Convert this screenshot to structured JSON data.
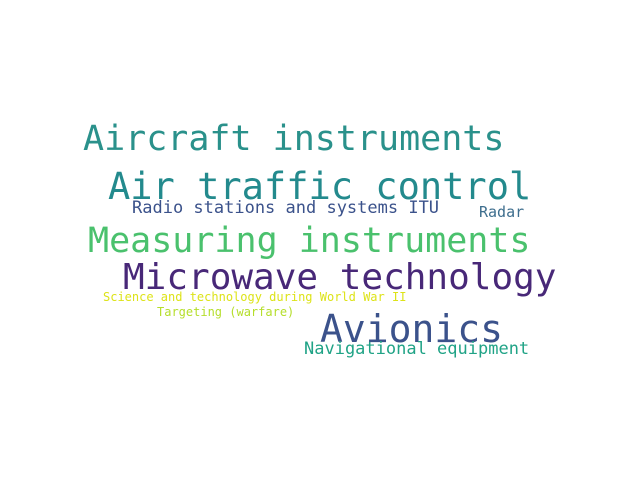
{
  "words": [
    {
      "text": "Aircraft instruments",
      "color": "#2a918b"
    },
    {
      "text": "Air traffic control",
      "color": "#238a8d"
    },
    {
      "text": "Radio stations and systems ITU",
      "color": "#3b528b"
    },
    {
      "text": "Radar",
      "color": "#3e6e8e"
    },
    {
      "text": "Measuring instruments",
      "color": "#4ac16d"
    },
    {
      "text": "Microwave technology",
      "color": "#482878"
    },
    {
      "text": "Science and technology during World War II",
      "color": "#dde318"
    },
    {
      "text": "Targeting (warfare)",
      "color": "#b5de2b"
    },
    {
      "text": "Avionics",
      "color": "#3b528b"
    },
    {
      "text": "Navigational equipment",
      "color": "#20a386"
    }
  ]
}
